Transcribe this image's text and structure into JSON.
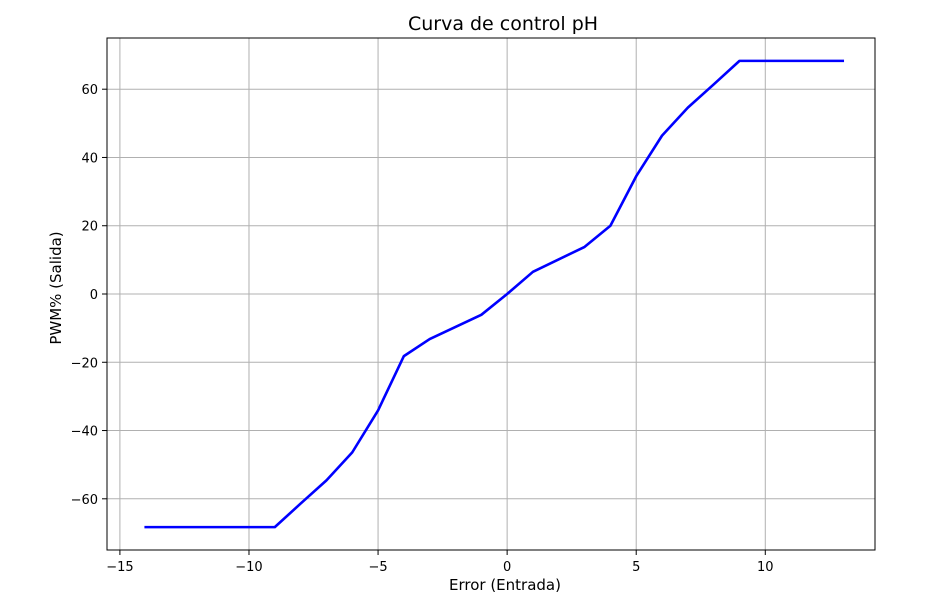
{
  "chart_data": {
    "type": "line",
    "title": "Curva de control pH",
    "xlabel": "Error (Entrada)",
    "ylabel": "PWM% (Salida)",
    "xlim": [
      -15.5,
      14.25
    ],
    "ylim": [
      -75,
      75
    ],
    "grid": true,
    "x_ticks": [
      -15,
      -10,
      -5,
      0,
      5,
      10
    ],
    "x_tick_labels": [
      "−15",
      "−10",
      "−5",
      "0",
      "5",
      "10"
    ],
    "y_ticks": [
      -60,
      -40,
      -20,
      0,
      20,
      40,
      60
    ],
    "y_tick_labels": [
      "−60",
      "−40",
      "−20",
      "0",
      "20",
      "40",
      "60"
    ],
    "series": [
      {
        "color": "#0000ff",
        "x": [
          -14,
          -9,
          -8,
          -7,
          -6,
          -5,
          -4,
          -3,
          -1,
          0,
          1,
          3,
          4,
          5,
          6,
          7,
          8,
          9,
          13
        ],
        "y": [
          -68.3,
          -68.3,
          -61.4,
          -54.6,
          -46.4,
          -34.1,
          -18.2,
          -13.2,
          -6.1,
          0,
          6.5,
          13.8,
          20,
          34.5,
          46.4,
          54.6,
          61.4,
          68.3,
          68.3
        ]
      }
    ]
  },
  "colors": {
    "line": "#0000ff",
    "grid": "#b0b0b0",
    "axes": "#000000"
  }
}
